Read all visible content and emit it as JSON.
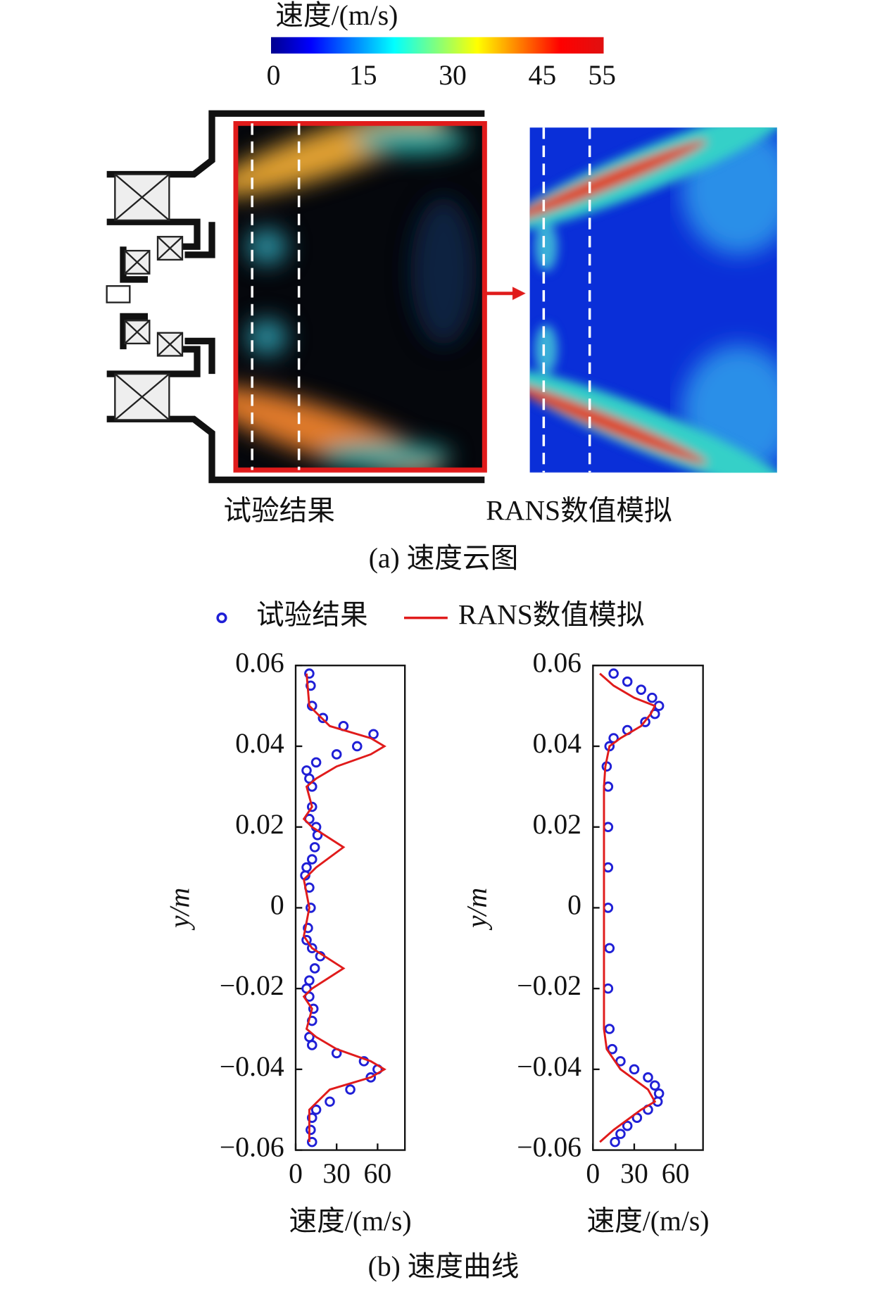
{
  "colorbar": {
    "title": "速度/(m/s)",
    "lim": [
      0,
      55
    ],
    "ticks": [
      0,
      15,
      30,
      45,
      55
    ]
  },
  "panel_a": {
    "left_label": "试验结果",
    "right_label": "RANS数值模拟",
    "caption": "(a) 速度云图"
  },
  "chart_data": [
    {
      "type": "line",
      "xlabel": "速度/(m/s)",
      "ylabel": "y/m",
      "xlim": [
        0,
        80
      ],
      "xticks": [
        0,
        30,
        60
      ],
      "ylim": [
        -0.06,
        0.06
      ],
      "yticks": [
        0.06,
        0.04,
        0.02,
        0,
        {
          "value": -0.02,
          "label": "−0.02"
        },
        {
          "value": -0.04,
          "label": "−0.04"
        },
        {
          "value": -0.06,
          "label": "−0.06"
        }
      ],
      "series": [
        {
          "name": "试验结果",
          "color": "#1f1fd6",
          "marker": "circle",
          "y": [
            0.058,
            0.055,
            0.05,
            0.047,
            0.045,
            0.043,
            0.04,
            0.038,
            0.036,
            0.034,
            0.032,
            0.03,
            0.025,
            0.022,
            0.02,
            0.018,
            0.015,
            0.012,
            0.01,
            0.008,
            0.005,
            0,
            -0.005,
            -0.008,
            -0.01,
            -0.012,
            -0.015,
            -0.018,
            -0.02,
            -0.022,
            -0.025,
            -0.028,
            -0.032,
            -0.034,
            -0.036,
            -0.038,
            -0.04,
            -0.042,
            -0.045,
            -0.048,
            -0.05,
            -0.052,
            -0.055,
            -0.058
          ],
          "x": [
            10,
            11,
            12,
            20,
            35,
            57,
            45,
            30,
            15,
            8,
            10,
            12,
            12,
            10,
            15,
            16,
            14,
            12,
            8,
            7,
            10,
            11,
            9,
            8,
            12,
            18,
            14,
            10,
            8,
            10,
            13,
            12,
            10,
            12,
            30,
            50,
            60,
            55,
            40,
            25,
            15,
            12,
            11,
            12
          ]
        },
        {
          "name": "RANS数值模拟",
          "color": "#e01b1b",
          "marker": "none",
          "y": [
            0.058,
            0.05,
            0.045,
            0.042,
            0.04,
            0.038,
            0.035,
            0.032,
            0.03,
            0.025,
            0.022,
            0.02,
            0.015,
            0.01,
            0.007,
            0,
            -0.007,
            -0.01,
            -0.015,
            -0.02,
            -0.022,
            -0.025,
            -0.03,
            -0.032,
            -0.035,
            -0.038,
            -0.04,
            -0.042,
            -0.045,
            -0.05,
            -0.058
          ],
          "x": [
            8,
            10,
            25,
            55,
            65,
            55,
            30,
            15,
            8,
            12,
            6,
            12,
            35,
            15,
            6,
            10,
            6,
            12,
            35,
            12,
            6,
            12,
            8,
            15,
            30,
            55,
            65,
            55,
            25,
            10,
            10
          ]
        }
      ]
    },
    {
      "type": "line",
      "xlabel": "速度/(m/s)",
      "ylabel": "y/m",
      "xlim": [
        0,
        80
      ],
      "xticks": [
        0,
        30,
        60
      ],
      "ylim": [
        -0.06,
        0.06
      ],
      "yticks": [
        0.06,
        0.04,
        0.02,
        0,
        {
          "value": -0.02,
          "label": "−0.02"
        },
        {
          "value": -0.04,
          "label": "−0.04"
        },
        {
          "value": -0.06,
          "label": "−0.06"
        }
      ],
      "series": [
        {
          "name": "试验结果",
          "color": "#1f1fd6",
          "marker": "circle",
          "y": [
            0.058,
            0.056,
            0.054,
            0.052,
            0.05,
            0.048,
            0.046,
            0.044,
            0.042,
            0.04,
            0.035,
            0.03,
            0.02,
            0.01,
            0,
            -0.01,
            -0.02,
            -0.03,
            -0.035,
            -0.038,
            -0.04,
            -0.042,
            -0.044,
            -0.046,
            -0.048,
            -0.05,
            -0.052,
            -0.054,
            -0.056,
            -0.058
          ],
          "x": [
            15,
            25,
            35,
            43,
            48,
            45,
            38,
            25,
            15,
            12,
            10,
            11,
            11,
            11,
            11,
            12,
            11,
            12,
            14,
            20,
            30,
            40,
            45,
            48,
            47,
            40,
            32,
            25,
            20,
            16
          ]
        },
        {
          "name": "RANS数值模拟",
          "color": "#e01b1b",
          "marker": "none",
          "y": [
            0.058,
            0.055,
            0.052,
            0.05,
            0.048,
            0.045,
            0.042,
            0.04,
            0.035,
            0.03,
            0,
            -0.03,
            -0.035,
            -0.04,
            -0.045,
            -0.048,
            -0.05,
            -0.055,
            -0.058
          ],
          "x": [
            5,
            15,
            30,
            45,
            42,
            35,
            20,
            12,
            9,
            8,
            8,
            8,
            10,
            20,
            40,
            45,
            35,
            15,
            5
          ]
        }
      ]
    }
  ],
  "caption_b": "(b) 速度曲线"
}
